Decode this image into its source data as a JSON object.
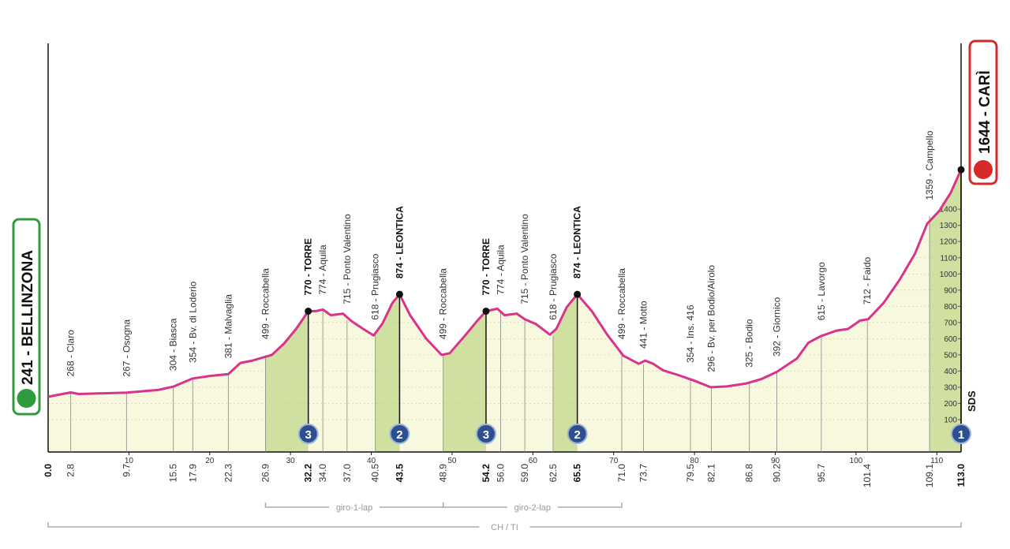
{
  "chart_data": {
    "type": "line",
    "color": "#d9338c",
    "x": [
      0,
      2.8,
      3.8,
      9.7,
      13.6,
      15.5,
      17.9,
      19.4,
      20,
      22.3,
      23.8,
      25.3,
      27.7,
      29.2,
      30.7,
      32.2,
      33.1,
      34,
      35,
      36.5,
      37.5,
      39,
      40.3,
      41.4,
      42.6,
      43.5,
      44.8,
      46.8,
      48.7,
      49.7,
      51.7,
      53.1,
      54.2,
      55.6,
      56.5,
      58,
      59,
      60.4,
      62.1,
      62.9,
      64.2,
      65.5,
      67.3,
      69.2,
      71.2,
      73.1,
      73.9,
      74.9,
      76.1,
      78,
      80,
      82,
      84,
      86.3,
      88.3,
      90.2,
      92.7,
      94.1,
      95.6,
      97.6,
      99,
      100.5,
      101.5,
      103.4,
      105.4,
      107.3,
      108.8,
      110.3,
      111.7,
      113
    ],
    "values": [
      241,
      268,
      258,
      267,
      283,
      304,
      354,
      365,
      370,
      381,
      450,
      465,
      500,
      570,
      660,
      770,
      770,
      780,
      745,
      755,
      710,
      660,
      620,
      695,
      820,
      874,
      745,
      600,
      500,
      510,
      625,
      710,
      770,
      785,
      745,
      755,
      720,
      690,
      625,
      660,
      795,
      874,
      770,
      625,
      495,
      445,
      465,
      445,
      405,
      375,
      340,
      300,
      305,
      322,
      351,
      395,
      478,
      575,
      615,
      650,
      660,
      712,
      720,
      820,
      965,
      1125,
      1310,
      1390,
      1500,
      1644
    ],
    "xlim": [
      0,
      113
    ],
    "xticks": [
      10,
      20,
      30,
      40,
      50,
      60,
      70,
      80,
      90,
      100,
      110
    ],
    "ylim": [
      -100,
      2400
    ],
    "yticks": [
      100,
      200,
      300,
      400,
      500,
      600,
      700,
      800,
      900,
      1000,
      1100,
      1200,
      1300,
      1400
    ],
    "waypoints": {
      "x": [
        0,
        2.8,
        9.7,
        15.5,
        17.9,
        22.3,
        26.9,
        32.2,
        34,
        37,
        40.5,
        43.5,
        48.9,
        54.2,
        56,
        59,
        62.5,
        65.5,
        71,
        73.7,
        79.5,
        82.1,
        86.8,
        90.2,
        95.7,
        101.4,
        109.1,
        113
      ],
      "x_labels": [
        "0.0",
        "2.8",
        "9.7",
        "15.5",
        "17.9",
        "22.3",
        "26.9",
        "32.2",
        "34.0",
        "37.0",
        "40.5",
        "43.5",
        "48.9",
        "54.2",
        "56.0",
        "59.0",
        "62.5",
        "65.5",
        "71.0",
        "73.7",
        "79.5",
        "82.1",
        "86.8",
        "90.2",
        "95.7",
        "101.4",
        "109.1",
        "113.0"
      ],
      "values": [
        241,
        268,
        267,
        304,
        354,
        381,
        499,
        770,
        774,
        715,
        618,
        874,
        499,
        770,
        774,
        715,
        618,
        874,
        499,
        441,
        354,
        296,
        325,
        392,
        615,
        712,
        1359,
        1644
      ],
      "value_labels": [
        "241 - BELLINZONA",
        "268 - Claro",
        "267 - Osogna",
        "304 - Biasca",
        "354 - Bv. di Loderio",
        "381 - Malvaglia",
        "499 - Roccabella",
        "770 - TORRE",
        "774 - Aquila",
        "715 - Ponto Valentino",
        "618 - Prugiasco",
        "874 - LEONTICA",
        "499 - Roccabella",
        "770 - TORRE",
        "774 - Aquila",
        "715 - Ponto Valentino",
        "618 - Prugiasco",
        "874 - LEONTICA",
        "499 - Roccabella",
        "441 - Motto",
        "354 - Ins. 416",
        "296 - Bv. per Bodio/Airolo",
        "325 - Bodio",
        "392 - Giornico",
        "615 - Lavorgo",
        "712 - Faido",
        "1359 - Campello",
        "1644 - CARÌ"
      ],
      "highlight": [
        true,
        false,
        false,
        false,
        false,
        false,
        false,
        true,
        false,
        false,
        false,
        true,
        false,
        true,
        false,
        false,
        false,
        true,
        false,
        false,
        false,
        false,
        false,
        false,
        false,
        false,
        false,
        true
      ],
      "kom": [
        null,
        null,
        null,
        null,
        null,
        null,
        null,
        3,
        null,
        null,
        null,
        2,
        null,
        3,
        null,
        null,
        null,
        2,
        null,
        null,
        null,
        null,
        null,
        null,
        null,
        null,
        null,
        1
      ]
    },
    "finish_note": "SDS",
    "segments": [
      {
        "label": "giro-1-lap",
        "from": 26.9,
        "to": 48.9
      },
      {
        "label": "giro-2-lap",
        "from": 48.9,
        "to": 71
      },
      {
        "label": "CH / TI",
        "from": 0,
        "to": 113
      }
    ]
  }
}
